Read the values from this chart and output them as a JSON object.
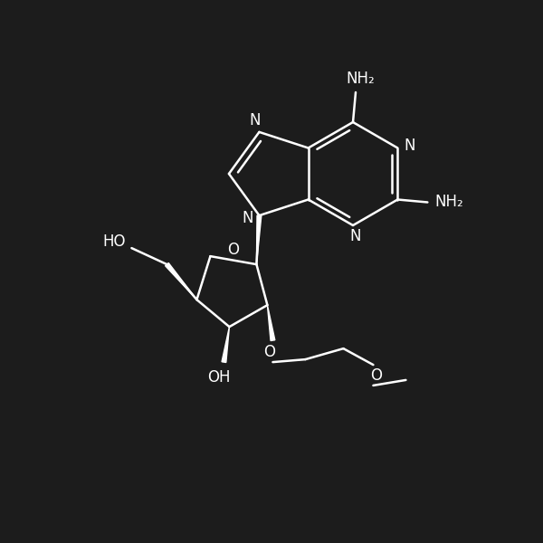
{
  "bg_color": "#1c1c1c",
  "line_color": "white",
  "text_color": "white",
  "lw": 1.8,
  "fontsize": 12,
  "figsize": [
    6.0,
    6.0
  ],
  "dpi": 100,
  "xlim": [
    0,
    10
  ],
  "ylim": [
    0,
    10
  ]
}
